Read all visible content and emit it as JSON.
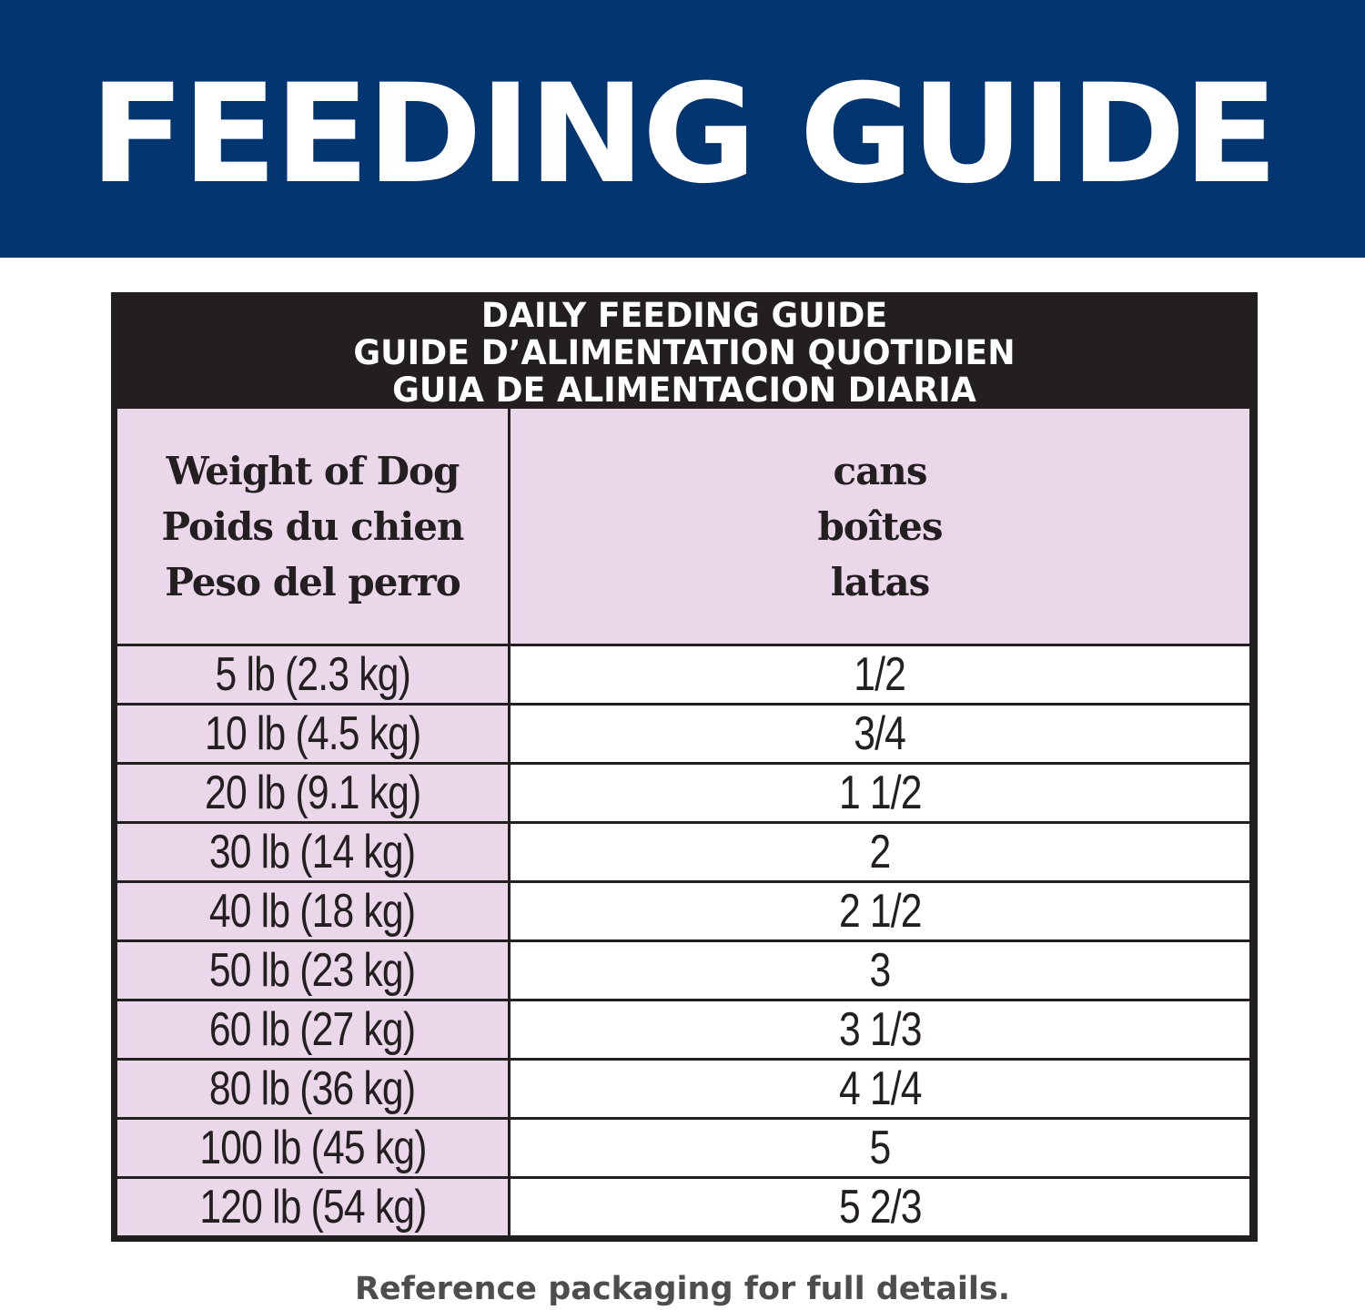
{
  "banner": {
    "title": "FEEDING GUIDE",
    "background_color": "#033570"
  },
  "table": {
    "title_lines": [
      "DAILY FEEDING GUIDE",
      "GUIDE D’ALIMENTATION QUOTIDIEN",
      "GUIA DE ALIMENTACION DIARIA"
    ],
    "columns": {
      "weight": [
        "Weight of Dog",
        "Poids du chien",
        "Peso del perro"
      ],
      "amount": [
        "cans",
        "boîtes",
        "latas"
      ]
    },
    "rows": [
      {
        "weight": "5 lb (2.3 kg)",
        "cans": "1/2"
      },
      {
        "weight": "10 lb (4.5 kg)",
        "cans": "3/4"
      },
      {
        "weight": "20 lb (9.1 kg)",
        "cans": "1 1/2"
      },
      {
        "weight": "30 lb (14 kg)",
        "cans": "2"
      },
      {
        "weight": "40 lb (18 kg)",
        "cans": "2 1/2"
      },
      {
        "weight": "50 lb (23 kg)",
        "cans": "3"
      },
      {
        "weight": "60 lb (27 kg)",
        "cans": "3 1/3"
      },
      {
        "weight": "80 lb (36 kg)",
        "cans": "4 1/4"
      },
      {
        "weight": "100 lb (45 kg)",
        "cans": "5"
      },
      {
        "weight": "120 lb (54 kg)",
        "cans": "5 2/3"
      }
    ],
    "colors": {
      "header_bg": "#231f20",
      "label_bg": "#ead8ea",
      "value_bg": "#ffffff"
    }
  },
  "footer": {
    "note": "Reference packaging for full details."
  }
}
